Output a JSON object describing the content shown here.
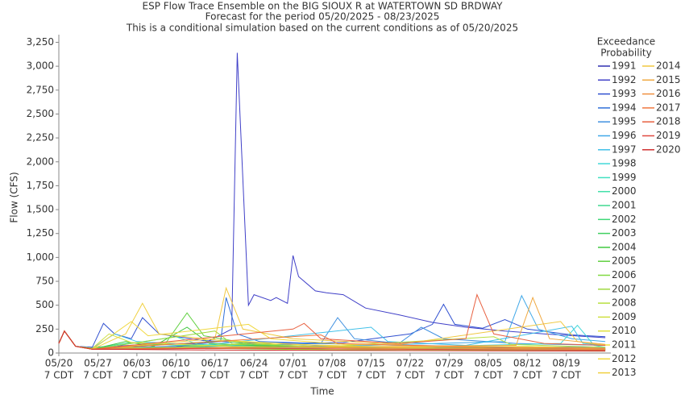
{
  "chart_data": {
    "type": "line",
    "title": "ESP Flow Trace Ensemble on the BIG SIOUX R at WATERTOWN SD BRDWAY",
    "subtitle": "Forecast for the period 05/20/2025 - 08/23/2025",
    "note": "This is a conditional simulation based on the current conditions as of 05/20/2025",
    "x_label": "Time",
    "y_label": "Flow (CFS)",
    "legend_title": [
      "Exceedance",
      "Probability"
    ],
    "xlim": [
      "05/20",
      "08/27"
    ],
    "xticks": [
      "05/20",
      "05/27",
      "06/03",
      "06/10",
      "06/17",
      "06/24",
      "07/01",
      "07/08",
      "07/15",
      "07/22",
      "07/29",
      "08/05",
      "08/12",
      "08/19"
    ],
    "xtick_sublabel": "7 CDT",
    "ylim": [
      0,
      3330
    ],
    "yticks": [
      0,
      250,
      500,
      750,
      {
        "value": 1000,
        "label": "1,000"
      },
      {
        "value": 1250,
        "label": "1,250"
      },
      {
        "value": 1500,
        "label": "1,500"
      },
      {
        "value": 1750,
        "label": "1,750"
      },
      {
        "value": 2000,
        "label": "2,000"
      },
      {
        "value": 2250,
        "label": "2,250"
      },
      {
        "value": 2500,
        "label": "2,500"
      },
      {
        "value": 2750,
        "label": "2,750"
      },
      {
        "value": 3000,
        "label": "3,000"
      },
      {
        "value": 3250,
        "label": "3,250"
      }
    ],
    "series": [
      {
        "name": "1991",
        "color": "#3030b0",
        "x": [
          "05/20",
          "05/21",
          "05/23",
          "05/26",
          "06/05",
          "06/20",
          "07/01",
          "07/10",
          "07/25",
          "08/10",
          "08/26"
        ],
        "values": [
          100,
          230,
          70,
          55,
          60,
          80,
          90,
          70,
          60,
          50,
          45
        ]
      },
      {
        "name": "1992",
        "color": "#4040c8",
        "x": [
          "05/20",
          "05/21",
          "05/23",
          "05/26",
          "06/05",
          "06/15",
          "06/20",
          "06/21",
          "06/23",
          "06/24",
          "06/27",
          "06/28",
          "06/30",
          "07/01",
          "07/02",
          "07/05",
          "07/07",
          "07/10",
          "07/14",
          "07/20",
          "07/26",
          "08/01",
          "08/08",
          "08/15",
          "08/26"
        ],
        "values": [
          100,
          230,
          70,
          60,
          90,
          100,
          250,
          3140,
          500,
          610,
          550,
          580,
          520,
          1020,
          800,
          650,
          630,
          610,
          470,
          400,
          320,
          270,
          230,
          200,
          160
        ]
      },
      {
        "name": "1993",
        "color": "#3050d0",
        "x": [
          "05/20",
          "05/21",
          "05/23",
          "05/26",
          "05/28",
          "05/30",
          "06/02",
          "06/04",
          "06/07",
          "06/15",
          "06/25",
          "07/10",
          "07/22",
          "07/26",
          "07/28",
          "07/30",
          "08/04",
          "08/08",
          "08/12",
          "08/20",
          "08/26"
        ],
        "values": [
          100,
          230,
          70,
          60,
          310,
          200,
          150,
          370,
          200,
          130,
          100,
          110,
          200,
          300,
          510,
          300,
          260,
          350,
          250,
          190,
          170
        ]
      },
      {
        "name": "1994",
        "color": "#3070d8",
        "x": [
          "05/20",
          "05/21",
          "05/23",
          "05/26",
          "06/10",
          "06/18",
          "06/19",
          "06/21",
          "06/25",
          "07/05",
          "07/20",
          "08/05",
          "08/26"
        ],
        "values": [
          100,
          230,
          70,
          50,
          70,
          120,
          580,
          200,
          120,
          100,
          80,
          70,
          60
        ]
      },
      {
        "name": "1995",
        "color": "#4090e0",
        "x": [
          "05/20",
          "05/21",
          "05/23",
          "05/26",
          "06/10",
          "07/06",
          "07/09",
          "07/12",
          "07/20",
          "07/24",
          "07/28",
          "08/10",
          "08/26"
        ],
        "values": [
          100,
          230,
          70,
          50,
          60,
          100,
          370,
          150,
          100,
          270,
          150,
          100,
          80
        ]
      },
      {
        "name": "1996",
        "color": "#40a8e8",
        "x": [
          "05/20",
          "05/21",
          "05/23",
          "05/26",
          "06/20",
          "07/15",
          "08/08",
          "08/11",
          "08/14",
          "08/20",
          "08/26"
        ],
        "values": [
          100,
          230,
          70,
          50,
          60,
          80,
          120,
          600,
          250,
          150,
          120
        ]
      },
      {
        "name": "1997",
        "color": "#40c0e8",
        "x": [
          "05/20",
          "05/21",
          "05/23",
          "05/26",
          "05/30",
          "06/03",
          "06/15",
          "07/15",
          "07/18",
          "08/01",
          "08/20",
          "08/22",
          "08/26"
        ],
        "values": [
          100,
          230,
          70,
          50,
          200,
          120,
          80,
          270,
          120,
          80,
          280,
          100,
          80
        ]
      },
      {
        "name": "1998",
        "color": "#40d8d8",
        "x": [
          "05/20",
          "05/21",
          "05/23",
          "05/26",
          "06/15",
          "07/20",
          "08/18",
          "08/21",
          "08/24",
          "08/26"
        ],
        "values": [
          100,
          230,
          70,
          45,
          50,
          60,
          100,
          290,
          80,
          60
        ]
      },
      {
        "name": "1999",
        "color": "#40e0c0",
        "x": [
          "05/20",
          "05/21",
          "05/23",
          "05/26",
          "06/10",
          "06/14",
          "07/01",
          "08/26"
        ],
        "values": [
          100,
          230,
          70,
          40,
          170,
          90,
          60,
          40
        ]
      },
      {
        "name": "2000",
        "color": "#40e0a8",
        "x": [
          "05/20",
          "05/21",
          "05/23",
          "05/26",
          "06/20",
          "07/15",
          "08/26"
        ],
        "values": [
          100,
          230,
          70,
          40,
          50,
          40,
          30
        ]
      },
      {
        "name": "2001",
        "color": "#40d890",
        "x": [
          "05/20",
          "05/21",
          "05/23",
          "05/26",
          "06/02",
          "06/10",
          "06/30",
          "07/20",
          "08/26"
        ],
        "values": [
          100,
          230,
          70,
          50,
          110,
          80,
          60,
          50,
          40
        ]
      },
      {
        "name": "2002",
        "color": "#40d878",
        "x": [
          "05/20",
          "05/21",
          "05/23",
          "05/26",
          "06/19",
          "06/25",
          "07/20",
          "08/26"
        ],
        "values": [
          100,
          230,
          70,
          40,
          130,
          70,
          50,
          40
        ]
      },
      {
        "name": "2003",
        "color": "#40d060",
        "x": [
          "05/20",
          "05/21",
          "05/23",
          "05/26",
          "06/15",
          "07/10",
          "08/26"
        ],
        "values": [
          100,
          230,
          70,
          40,
          60,
          40,
          30
        ]
      },
      {
        "name": "2004",
        "color": "#40c840",
        "x": [
          "05/20",
          "05/21",
          "05/23",
          "05/26",
          "06/01",
          "06/06",
          "06/12",
          "06/16",
          "07/01",
          "08/26"
        ],
        "values": [
          100,
          230,
          70,
          40,
          120,
          70,
          270,
          100,
          60,
          40
        ]
      },
      {
        "name": "2005",
        "color": "#60d040",
        "x": [
          "05/20",
          "05/21",
          "05/23",
          "05/26",
          "06/08",
          "06/12",
          "06/15",
          "06/25",
          "07/20",
          "08/26"
        ],
        "values": [
          100,
          230,
          70,
          50,
          90,
          420,
          180,
          80,
          50,
          40
        ]
      },
      {
        "name": "2006",
        "color": "#80d840",
        "x": [
          "05/20",
          "05/21",
          "05/23",
          "05/26",
          "06/15",
          "07/10",
          "08/26"
        ],
        "values": [
          100,
          230,
          70,
          40,
          50,
          30,
          20
        ]
      },
      {
        "name": "2007",
        "color": "#a0d840",
        "x": [
          "05/20",
          "05/21",
          "05/23",
          "05/26",
          "06/17",
          "06/20",
          "07/10",
          "08/26"
        ],
        "values": [
          100,
          230,
          70,
          40,
          230,
          100,
          60,
          40
        ]
      },
      {
        "name": "2008",
        "color": "#b8e040",
        "x": [
          "05/20",
          "05/21",
          "05/23",
          "05/26",
          "06/10",
          "06/25",
          "07/05",
          "08/06",
          "08/09",
          "08/26"
        ],
        "values": [
          100,
          230,
          70,
          50,
          60,
          100,
          60,
          170,
          90,
          60
        ]
      },
      {
        "name": "2009",
        "color": "#d0e040",
        "x": [
          "05/20",
          "05/21",
          "05/23",
          "05/26",
          "05/29",
          "06/02",
          "06/20",
          "07/15",
          "08/26"
        ],
        "values": [
          100,
          230,
          70,
          50,
          200,
          110,
          70,
          50,
          40
        ]
      },
      {
        "name": "2010",
        "color": "#e0e040",
        "x": [
          "05/20",
          "05/21",
          "05/23",
          "05/26",
          "06/20",
          "07/01",
          "07/20",
          "08/12",
          "08/26"
        ],
        "values": [
          100,
          230,
          70,
          40,
          130,
          90,
          60,
          70,
          50
        ]
      },
      {
        "name": "2011",
        "color": "#f0e040",
        "x": [
          "05/20",
          "05/21",
          "05/23",
          "05/26",
          "06/15",
          "07/10",
          "08/26"
        ],
        "values": [
          100,
          230,
          70,
          40,
          50,
          40,
          30
        ]
      },
      {
        "name": "2012",
        "color": "#f0d840",
        "x": [
          "05/20",
          "05/21",
          "05/23",
          "05/26",
          "06/02",
          "06/05",
          "06/20",
          "06/23",
          "06/27",
          "07/10",
          "08/26"
        ],
        "values": [
          100,
          230,
          70,
          40,
          330,
          180,
          280,
          300,
          150,
          90,
          50
        ]
      },
      {
        "name": "2013",
        "color": "#f0d040",
        "x": [
          "05/20",
          "05/21",
          "05/23",
          "05/26",
          "06/01",
          "06/04",
          "06/07",
          "06/20",
          "07/10",
          "08/26"
        ],
        "values": [
          100,
          230,
          70,
          40,
          200,
          520,
          200,
          120,
          70,
          50
        ]
      },
      {
        "name": "2014",
        "color": "#f0c840",
        "x": [
          "05/20",
          "05/21",
          "05/23",
          "05/26",
          "06/17",
          "06/19",
          "06/22",
          "07/01",
          "07/20",
          "08/18",
          "08/21",
          "08/26"
        ],
        "values": [
          100,
          230,
          70,
          40,
          150,
          680,
          250,
          150,
          90,
          330,
          120,
          80
        ]
      },
      {
        "name": "2015",
        "color": "#f0a840",
        "x": [
          "05/20",
          "05/21",
          "05/23",
          "05/26",
          "06/20",
          "07/20",
          "08/10",
          "08/13",
          "08/16",
          "08/26"
        ],
        "values": [
          100,
          230,
          70,
          40,
          60,
          70,
          80,
          580,
          150,
          90
        ]
      },
      {
        "name": "2016",
        "color": "#f09040",
        "x": [
          "05/20",
          "05/21",
          "05/23",
          "05/26",
          "06/25",
          "07/25",
          "08/26"
        ],
        "values": [
          100,
          230,
          70,
          40,
          60,
          50,
          40
        ]
      },
      {
        "name": "2017",
        "color": "#f07840",
        "x": [
          "05/20",
          "05/21",
          "05/23",
          "05/26",
          "07/06",
          "07/09",
          "08/05",
          "08/26"
        ],
        "values": [
          100,
          230,
          70,
          40,
          190,
          100,
          60,
          50
        ]
      },
      {
        "name": "2018",
        "color": "#e86040",
        "x": [
          "05/20",
          "05/21",
          "05/23",
          "05/26",
          "07/01",
          "07/03",
          "07/06",
          "07/20",
          "08/01",
          "08/03",
          "08/06",
          "08/15",
          "08/26"
        ],
        "values": [
          100,
          230,
          70,
          40,
          250,
          310,
          150,
          100,
          150,
          610,
          200,
          100,
          80
        ]
      },
      {
        "name": "2019",
        "color": "#e04840",
        "x": [
          "05/20",
          "05/21",
          "05/23",
          "05/26",
          "06/20",
          "07/20",
          "08/26"
        ],
        "values": [
          100,
          230,
          70,
          40,
          50,
          40,
          30
        ]
      },
      {
        "name": "2020",
        "color": "#d03030",
        "x": [
          "05/20",
          "05/21",
          "05/23",
          "05/26",
          "06/20",
          "07/20",
          "08/26"
        ],
        "values": [
          100,
          230,
          70,
          40,
          30,
          25,
          20
        ]
      }
    ]
  }
}
